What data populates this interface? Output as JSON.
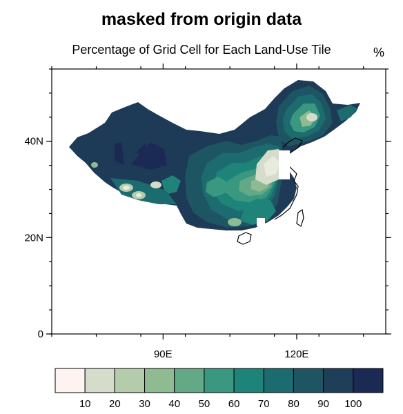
{
  "title": "masked from origin data",
  "subtitle": "Percentage of Grid Cell for Each Land-Use Tile",
  "units": "%",
  "map": {
    "projection": "lat-lon",
    "lon_range": [
      65,
      140
    ],
    "lat_range": [
      0,
      55
    ],
    "lat_ticks": [
      {
        "value": 40,
        "label": "40N"
      },
      {
        "value": 20,
        "label": "20N"
      },
      {
        "value": 0,
        "label": "0"
      }
    ],
    "lon_ticks": [
      {
        "value": 90,
        "label": "90E"
      },
      {
        "value": 120,
        "label": "120E"
      }
    ],
    "land_color": "#1d3a56",
    "bright_spot_color": "#e8ecdf"
  },
  "colorbar": {
    "colors": [
      "#fdf3f1",
      "#d6dcca",
      "#b3ccab",
      "#8fbb92",
      "#64a987",
      "#3b9880",
      "#1e8379",
      "#1c6b6f",
      "#1e5562",
      "#1e3f59",
      "#1b2a55"
    ],
    "labels": [
      "10",
      "20",
      "30",
      "40",
      "50",
      "60",
      "70",
      "80",
      "90",
      "100"
    ]
  }
}
